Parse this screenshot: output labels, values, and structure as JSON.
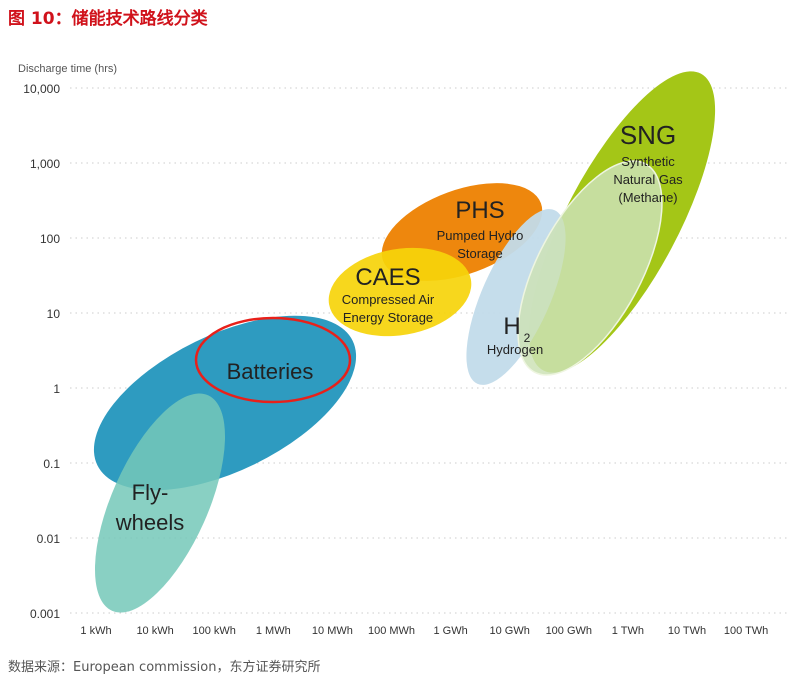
{
  "figure_title": "图 10：储能技术路线分类",
  "source": "数据来源：European commission，东方证券研究所",
  "chart_data": {
    "type": "bubble-region",
    "ylabel": "Discharge time (hrs)",
    "xlabel": "",
    "y_scale": "log",
    "x_scale": "log",
    "y_ticks": [
      "10,000",
      "1,000",
      "100",
      "10",
      "1",
      "0.1",
      "0.01",
      "0.001"
    ],
    "x_ticks": [
      "1 kWh",
      "10 kWh",
      "100 kWh",
      "1 MWh",
      "10 MWh",
      "100 MWh",
      "1 GWh",
      "10 GWh",
      "100 GWh",
      "1 TWh",
      "10 TWh",
      "100 TWh"
    ],
    "grid": "horizontal dotted",
    "regions": [
      {
        "id": "batteries",
        "label": "Batteries",
        "sublabel": "",
        "energy_range": [
          "1 kWh",
          "10 MWh"
        ],
        "time_range_hrs": [
          0.05,
          10
        ],
        "color": "#2e9bc0",
        "highlighted": true
      },
      {
        "id": "flywheels",
        "label": "Fly-",
        "label2": "wheels",
        "energy_range": [
          "1 kWh",
          "1 MWh"
        ],
        "time_range_hrs": [
          0.002,
          1
        ],
        "color": "#74c8b8"
      },
      {
        "id": "caes",
        "label": "CAES",
        "sublabel": "Compressed Air",
        "sublabel2": "Energy Storage",
        "energy_range": [
          "10 MWh",
          "1 GWh"
        ],
        "time_range_hrs": [
          4,
          50
        ],
        "color": "#f6d40a"
      },
      {
        "id": "phs",
        "label": "PHS",
        "sublabel": "Pumped Hydro",
        "sublabel2": "Storage",
        "energy_range": [
          "100 MWh",
          "10 GWh"
        ],
        "time_range_hrs": [
          10,
          300
        ],
        "color": "#ee870d"
      },
      {
        "id": "h2",
        "label": "H",
        "label_sub": "2",
        "sublabel": "Hydrogen",
        "energy_range": [
          "10 GWh",
          "1 TWh"
        ],
        "time_range_hrs": [
          1,
          100
        ],
        "color": "#c2dbea"
      },
      {
        "id": "sng",
        "label": "SNG",
        "sublabel": "Synthetic",
        "sublabel2": "Natural Gas",
        "sublabel3": "(Methane)",
        "energy_range": [
          "10 GWh",
          "10 TWh"
        ],
        "time_range_hrs": [
          1,
          5000
        ],
        "color": "#a4c617"
      }
    ],
    "highlight_color": "#e8201a"
  }
}
